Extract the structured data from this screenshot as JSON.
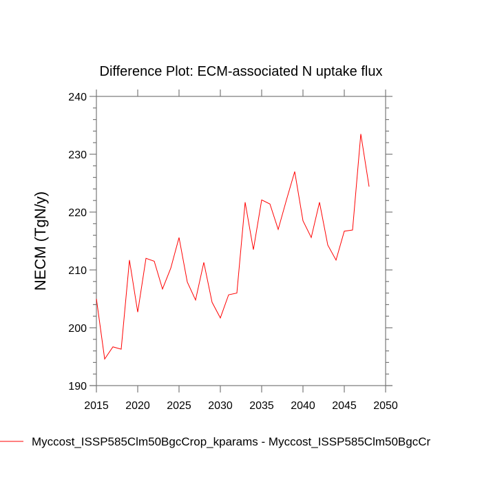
{
  "chart_data": {
    "type": "line",
    "title": "Difference Plot: ECM-associated N uptake flux",
    "xlabel": "",
    "ylabel": "NECM  (TgN/y)",
    "xlim": [
      2015,
      2050
    ],
    "ylim": [
      190,
      240
    ],
    "xticks": [
      2015,
      2020,
      2025,
      2030,
      2035,
      2040,
      2045,
      2050
    ],
    "xtick_labels": [
      "2015",
      "2020",
      "2025",
      "2030",
      "2035",
      "2040",
      "2045",
      "2050"
    ],
    "yticks": [
      190,
      200,
      210,
      220,
      230,
      240
    ],
    "ytick_labels": [
      "190",
      "200",
      "210",
      "220",
      "230",
      "240"
    ],
    "y_minor_step": 2,
    "grid": false,
    "legend_placement": "bottom",
    "series": [
      {
        "name": "Myccost_ISSP585Clm50BgcCrop_kparams - Myccost_ISSP585Clm50BgcCr",
        "color": "#ff0000",
        "x": [
          2015,
          2016,
          2017,
          2018,
          2019,
          2020,
          2021,
          2022,
          2023,
          2024,
          2025,
          2026,
          2027,
          2028,
          2029,
          2030,
          2031,
          2032,
          2033,
          2034,
          2035,
          2036,
          2037,
          2038,
          2039,
          2040,
          2041,
          2042,
          2043,
          2044,
          2045,
          2046,
          2047,
          2048
        ],
        "values": [
          205.0,
          194.6,
          196.7,
          196.3,
          211.7,
          202.7,
          212.0,
          211.5,
          206.7,
          210.3,
          215.6,
          207.9,
          204.8,
          211.3,
          204.4,
          201.7,
          205.7,
          206.0,
          221.7,
          213.5,
          222.1,
          221.4,
          217.0,
          222.1,
          227.0,
          218.5,
          215.6,
          221.7,
          214.3,
          211.7,
          216.7,
          216.9,
          233.5,
          224.4
        ]
      }
    ]
  }
}
